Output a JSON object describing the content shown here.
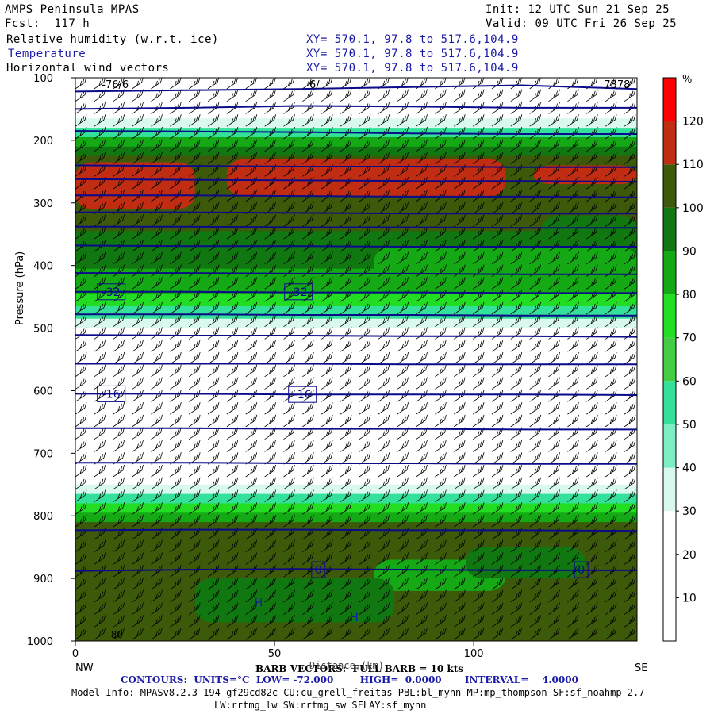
{
  "header": {
    "model": "AMPS Peninsula MPAS",
    "init": "Init: 12 UTC Sun 21 Sep 25",
    "fcst": "Fcst:  117 h",
    "valid": "Valid: 09 UTC Fri 26 Sep 25",
    "fields": [
      {
        "name": "Relative humidity (w.r.t. ice)",
        "xy": "XY= 570.1, 97.8 to 517.6,104.9"
      },
      {
        "name": "Temperature",
        "xy": "XY= 570.1, 97.8 to 517.6,104.9"
      },
      {
        "name": "Horizontal wind vectors",
        "xy": "XY= 570.1, 97.8 to 517.6,104.9"
      }
    ]
  },
  "chart_data": {
    "type": "heatmap",
    "xlabel": "Distance (km)",
    "ylabel": "Pressure (hPa)",
    "xlim": [
      0,
      141
    ],
    "ylim": [
      1000,
      100
    ],
    "x_ticks": [
      0,
      50,
      100
    ],
    "y_ticks": [
      100,
      200,
      300,
      400,
      500,
      600,
      700,
      800,
      900,
      1000
    ],
    "left_end_label": "NW",
    "right_end_label": "SE",
    "colorbar": {
      "unit": "%",
      "ticks": [
        10,
        20,
        30,
        40,
        50,
        60,
        70,
        80,
        90,
        100,
        110,
        120
      ],
      "colors": [
        "#ffffff",
        "#ffffff",
        "#ffffff",
        "#d9f9ee",
        "#7dedc4",
        "#33e19a",
        "#44cc44",
        "#22dd22",
        "#15aa15",
        "#117711",
        "#3d5a0a",
        "#c02d12",
        "#ff0000"
      ]
    },
    "rh_layers": [
      {
        "p_top": 100,
        "p_bot": 165,
        "value": 5
      },
      {
        "p_top": 165,
        "p_bot": 180,
        "value": 35
      },
      {
        "p_top": 180,
        "p_bot": 195,
        "value": 55
      },
      {
        "p_top": 195,
        "p_bot": 210,
        "value": 85
      },
      {
        "p_top": 210,
        "p_bot": 225,
        "value": 95
      },
      {
        "p_top": 225,
        "p_bot": 300,
        "value": 105
      },
      {
        "p_top": 300,
        "p_bot": 345,
        "value": 105
      },
      {
        "p_top": 345,
        "p_bot": 405,
        "value": 95
      },
      {
        "p_top": 405,
        "p_bot": 445,
        "value": 85
      },
      {
        "p_top": 445,
        "p_bot": 465,
        "value": 75
      },
      {
        "p_top": 465,
        "p_bot": 485,
        "value": 55
      },
      {
        "p_top": 485,
        "p_bot": 500,
        "value": 35
      },
      {
        "p_top": 500,
        "p_bot": 750,
        "value": 5
      },
      {
        "p_top": 750,
        "p_bot": 765,
        "value": 35
      },
      {
        "p_top": 765,
        "p_bot": 780,
        "value": 55
      },
      {
        "p_top": 780,
        "p_bot": 795,
        "value": 75
      },
      {
        "p_top": 795,
        "p_bot": 810,
        "value": 85
      },
      {
        "p_top": 810,
        "p_bot": 1000,
        "value": 105
      }
    ],
    "rh_patches": [
      {
        "x": [
          0,
          30
        ],
        "p": [
          235,
          310
        ],
        "value": 115
      },
      {
        "x": [
          38,
          108
        ],
        "p": [
          230,
          290
        ],
        "value": 115
      },
      {
        "x": [
          115,
          141
        ],
        "p": [
          240,
          270
        ],
        "value": 115
      },
      {
        "x": [
          117,
          141
        ],
        "p": [
          320,
          400
        ],
        "value": 95
      },
      {
        "x": [
          75,
          141
        ],
        "p": [
          370,
          440
        ],
        "value": 85
      },
      {
        "x": [
          75,
          108
        ],
        "p": [
          870,
          920
        ],
        "value": 85
      },
      {
        "x": [
          98,
          128
        ],
        "p": [
          850,
          900
        ],
        "value": 95
      },
      {
        "x": [
          30,
          80
        ],
        "p": [
          900,
          970
        ],
        "value": 95
      }
    ],
    "temperature_contours": [
      {
        "level": -72,
        "p": [
          122,
          120,
          118,
          115,
          112,
          118
        ]
      },
      {
        "level": -68,
        "p": [
          150,
          148,
          145,
          146,
          148,
          148
        ]
      },
      {
        "level": -64,
        "p": [
          185,
          186,
          187,
          189,
          190,
          190
        ]
      },
      {
        "level": -60,
        "p": [
          240,
          241,
          242,
          242,
          243,
          243
        ]
      },
      {
        "level": -56,
        "p": [
          262,
          263,
          264,
          265,
          265,
          266
        ]
      },
      {
        "level": -52,
        "p": [
          288,
          288,
          289,
          290,
          290,
          291
        ]
      },
      {
        "level": -48,
        "p": [
          315,
          315,
          316,
          317,
          317,
          317
        ]
      },
      {
        "level": -44,
        "p": [
          338,
          338,
          339,
          339,
          340,
          340
        ]
      },
      {
        "level": -40,
        "p": [
          368,
          369,
          369,
          370,
          370,
          370
        ]
      },
      {
        "level": -36,
        "p": [
          412,
          412,
          413,
          413,
          414,
          414
        ]
      },
      {
        "level": -32,
        "p": [
          442,
          442,
          443,
          443,
          444,
          444
        ]
      },
      {
        "level": -28,
        "p": [
          478,
          478,
          479,
          479,
          480,
          480
        ]
      },
      {
        "level": -24,
        "p": [
          511,
          512,
          512,
          513,
          513,
          514
        ]
      },
      {
        "level": -20,
        "p": [
          557,
          557,
          557,
          558,
          558,
          558
        ]
      },
      {
        "level": -16,
        "p": [
          605,
          605,
          606,
          606,
          606,
          607
        ]
      },
      {
        "level": -12,
        "p": [
          660,
          660,
          661,
          661,
          662,
          662
        ]
      },
      {
        "level": -8,
        "p": [
          715,
          715,
          716,
          716,
          717,
          717
        ]
      },
      {
        "level": -4,
        "p": [
          823,
          822,
          822,
          823,
          823,
          824
        ]
      },
      {
        "level": 0,
        "p": [
          888,
          886,
          885,
          886,
          887,
          887
        ]
      }
    ],
    "contour_x": [
      0,
      28,
      56,
      84,
      112,
      141
    ],
    "contour_labels": [
      {
        "text": "-32",
        "x": 9,
        "p": 442
      },
      {
        "text": "-32",
        "x": 56,
        "p": 442
      },
      {
        "text": "-16",
        "x": 9,
        "p": 605
      },
      {
        "text": "-16",
        "x": 57,
        "p": 606
      },
      {
        "text": "0",
        "x": 61,
        "p": 886
      },
      {
        "text": "0",
        "x": 127,
        "p": 886
      }
    ],
    "top_labels": [
      "-76/6",
      "6/",
      "7378"
    ],
    "h_markers": [
      {
        "text": "H",
        "x": 46,
        "p": 945
      },
      {
        "text": "H",
        "x": 70,
        "p": 968
      }
    ],
    "low_label": {
      "text": "-80",
      "x": 10,
      "p": 995
    },
    "barb_rows_hpa": [
      110,
      130,
      150,
      170,
      190,
      210,
      230,
      250,
      270,
      290,
      310,
      330,
      350,
      370,
      390,
      410,
      430,
      450,
      470,
      490,
      510,
      530,
      550,
      570,
      590,
      610,
      630,
      650,
      670,
      690,
      710,
      730,
      750,
      770,
      790,
      810,
      830,
      850,
      870,
      890,
      910,
      930,
      950,
      970,
      990
    ],
    "barb_columns": 30
  },
  "footer": {
    "barb_text": "BARB VECTORS:  FULL BARB = 10 kts",
    "distance_overlay": "Distance (km)",
    "contours_text": "CONTOURS:  UNITS=°C  LOW= -72.000        HIGH=  0.0000       INTERVAL=    4.0000",
    "model_info_1": "Model Info: MPASv8.2.3-194-gf29cd82c CU:cu_grell_freitas PBL:bl_mynn MP:mp_thompson SF:sf_noahmp 2.7",
    "model_info_2": "LW:rrtmg_lw SW:rrtmg_sw SFLAY:sf_mynn"
  }
}
